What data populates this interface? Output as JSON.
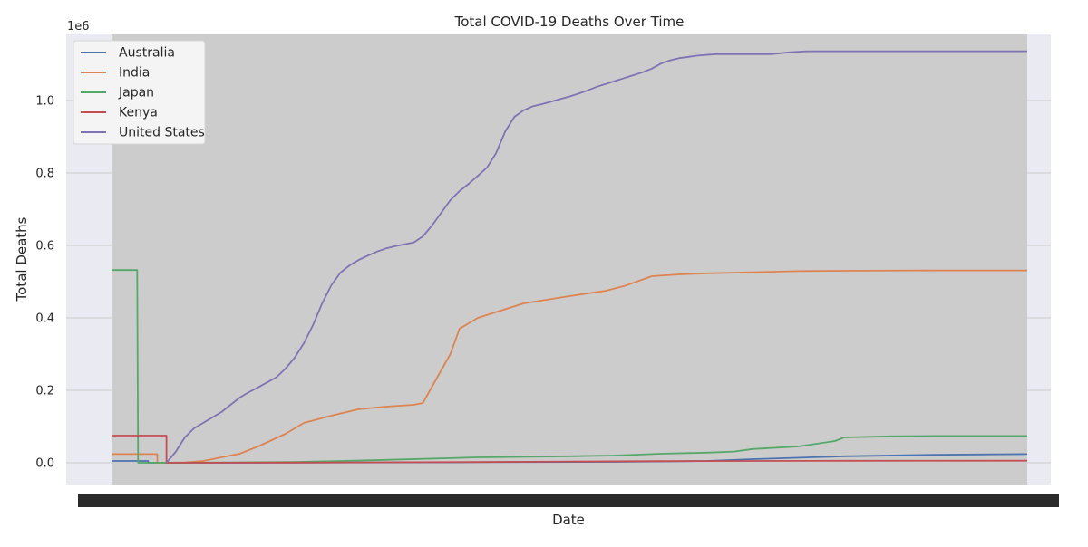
{
  "chart_data": {
    "type": "line",
    "title": "Total COVID-19 Deaths Over Time",
    "xlabel": "Date",
    "ylabel": "Total Deaths",
    "y_scale_label": "1e6",
    "ylim": [
      -60000,
      1185000
    ],
    "yticks": [
      0,
      200000,
      400000,
      600000,
      800000,
      1000000
    ],
    "ytick_labels": [
      "0.0",
      "0.2",
      "0.4",
      "0.6",
      "0.8",
      "1.0"
    ],
    "x_axis_note": "date tick labels overlap into an unreadable black band",
    "x_index_range": [
      0,
      100
    ],
    "grid": true,
    "legend_position": "top-left",
    "series": [
      {
        "name": "Australia",
        "color": "#4c72b0",
        "x": [
          0,
          4,
          4,
          20,
          40,
          55,
          65,
          70,
          80,
          90,
          100
        ],
        "y": [
          5000,
          5000,
          0,
          300,
          1500,
          2500,
          5000,
          10000,
          18000,
          22000,
          24000
        ]
      },
      {
        "name": "India",
        "color": "#dd8452",
        "x": [
          0,
          5,
          5,
          8,
          10,
          14,
          16,
          19,
          21,
          24,
          27,
          30,
          33,
          34,
          37,
          38,
          40,
          45,
          50,
          54,
          56,
          59,
          62,
          65,
          70,
          75,
          80,
          90,
          100
        ],
        "y": [
          24000,
          24000,
          0,
          1000,
          5000,
          25000,
          45000,
          80000,
          110000,
          130000,
          148000,
          155000,
          160000,
          165000,
          300000,
          370000,
          400000,
          440000,
          460000,
          475000,
          488000,
          515000,
          520000,
          523000,
          526000,
          529000,
          530000,
          531000,
          531000
        ]
      },
      {
        "name": "Japan",
        "color": "#55a868",
        "x": [
          0,
          2.8,
          2.9,
          6,
          20,
          30,
          40,
          50,
          55,
          60,
          65,
          68,
          70,
          75,
          79,
          80,
          85,
          90,
          100
        ],
        "y": [
          532000,
          532000,
          0,
          100,
          2000,
          8000,
          15000,
          18000,
          20000,
          25000,
          28000,
          31000,
          38000,
          45000,
          60000,
          70000,
          73000,
          74000,
          74000
        ]
      },
      {
        "name": "Kenya",
        "color": "#c44e52",
        "x": [
          0,
          6,
          6,
          20,
          40,
          60,
          80,
          100
        ],
        "y": [
          75000,
          75000,
          0,
          500,
          2000,
          4500,
          5600,
          5700
        ]
      },
      {
        "name": "United States",
        "color": "#8172b3",
        "x": [
          6,
          7,
          8,
          9,
          10,
          11,
          12,
          13,
          14,
          15,
          16,
          17,
          18,
          19,
          20,
          21,
          22,
          23,
          24,
          25,
          26,
          27,
          28,
          29,
          30,
          31,
          32,
          33,
          34,
          35,
          36,
          37,
          38,
          39,
          40,
          41,
          42,
          43,
          44,
          45,
          46,
          47,
          48,
          49,
          50,
          51,
          52,
          53,
          54,
          55,
          56,
          57,
          58,
          59,
          60,
          61,
          62,
          64,
          66,
          68,
          70,
          72,
          74,
          76,
          78,
          80,
          82,
          84,
          86,
          88,
          90,
          92,
          94,
          96,
          98,
          100
        ],
        "y": [
          0,
          30000,
          70000,
          95000,
          110000,
          125000,
          140000,
          160000,
          180000,
          195000,
          208000,
          222000,
          236000,
          260000,
          290000,
          330000,
          380000,
          440000,
          490000,
          525000,
          545000,
          560000,
          572000,
          583000,
          592000,
          598000,
          603000,
          608000,
          625000,
          655000,
          690000,
          725000,
          750000,
          770000,
          792000,
          815000,
          855000,
          915000,
          955000,
          973000,
          984000,
          990000,
          997000,
          1004000,
          1011000,
          1019000,
          1028000,
          1038000,
          1046000,
          1054000,
          1062000,
          1070000,
          1078000,
          1088000,
          1102000,
          1111000,
          1117000,
          1124000,
          1128000,
          1128000,
          1128000,
          1128000,
          1133000,
          1136000,
          1136000,
          1136000,
          1136000,
          1136000,
          1136000,
          1136000,
          1136000,
          1136000,
          1136000,
          1136000,
          1136000,
          1136000
        ]
      }
    ]
  }
}
